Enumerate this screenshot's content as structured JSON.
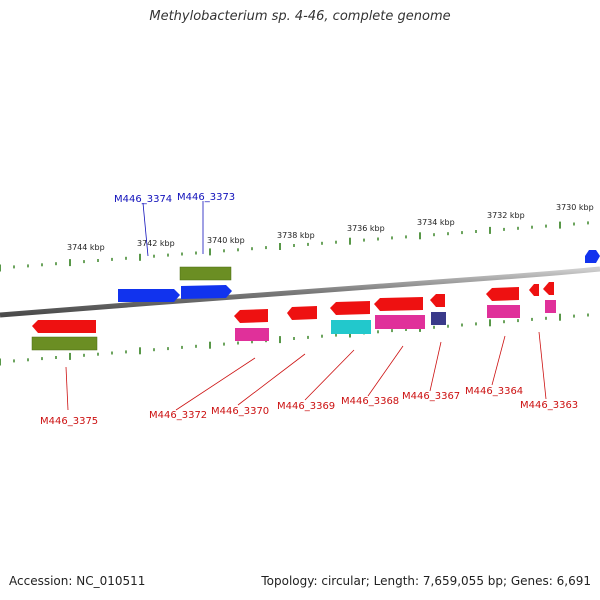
{
  "title": "Methylobacterium sp. 4-46, complete genome",
  "accession": "Accession: NC_010511",
  "summary": "Topology: circular; Length: 7,659,055 bp; Genes: 6,691",
  "scale_labels": [
    "3744 kbp",
    "3742 kbp",
    "3740 kbp",
    "3738 kbp",
    "3736 kbp",
    "3734 kbp",
    "3732 kbp",
    "3730 kbp"
  ],
  "gene_labels": {
    "M446_3374": "M446_3374",
    "M446_3373": "M446_3373",
    "M446_3375": "M446_3375",
    "M446_3372": "M446_3372",
    "M446_3370": "M446_3370",
    "M446_3369": "M446_3369",
    "M446_3368": "M446_3368",
    "M446_3367": "M446_3367",
    "M446_3364": "M446_3364",
    "M446_3363": "M446_3363"
  },
  "colors": {
    "backbone": "#8a8a8a",
    "tick": "#2e7d1a",
    "red": "#ee1111",
    "blue": "#1133ee",
    "olive": "#6b8e23",
    "magenta": "#e0309a",
    "cyan": "#22c8cc",
    "navy": "#3a3a8a",
    "label_red": "#cc1111",
    "label_blue": "#1111bb"
  }
}
